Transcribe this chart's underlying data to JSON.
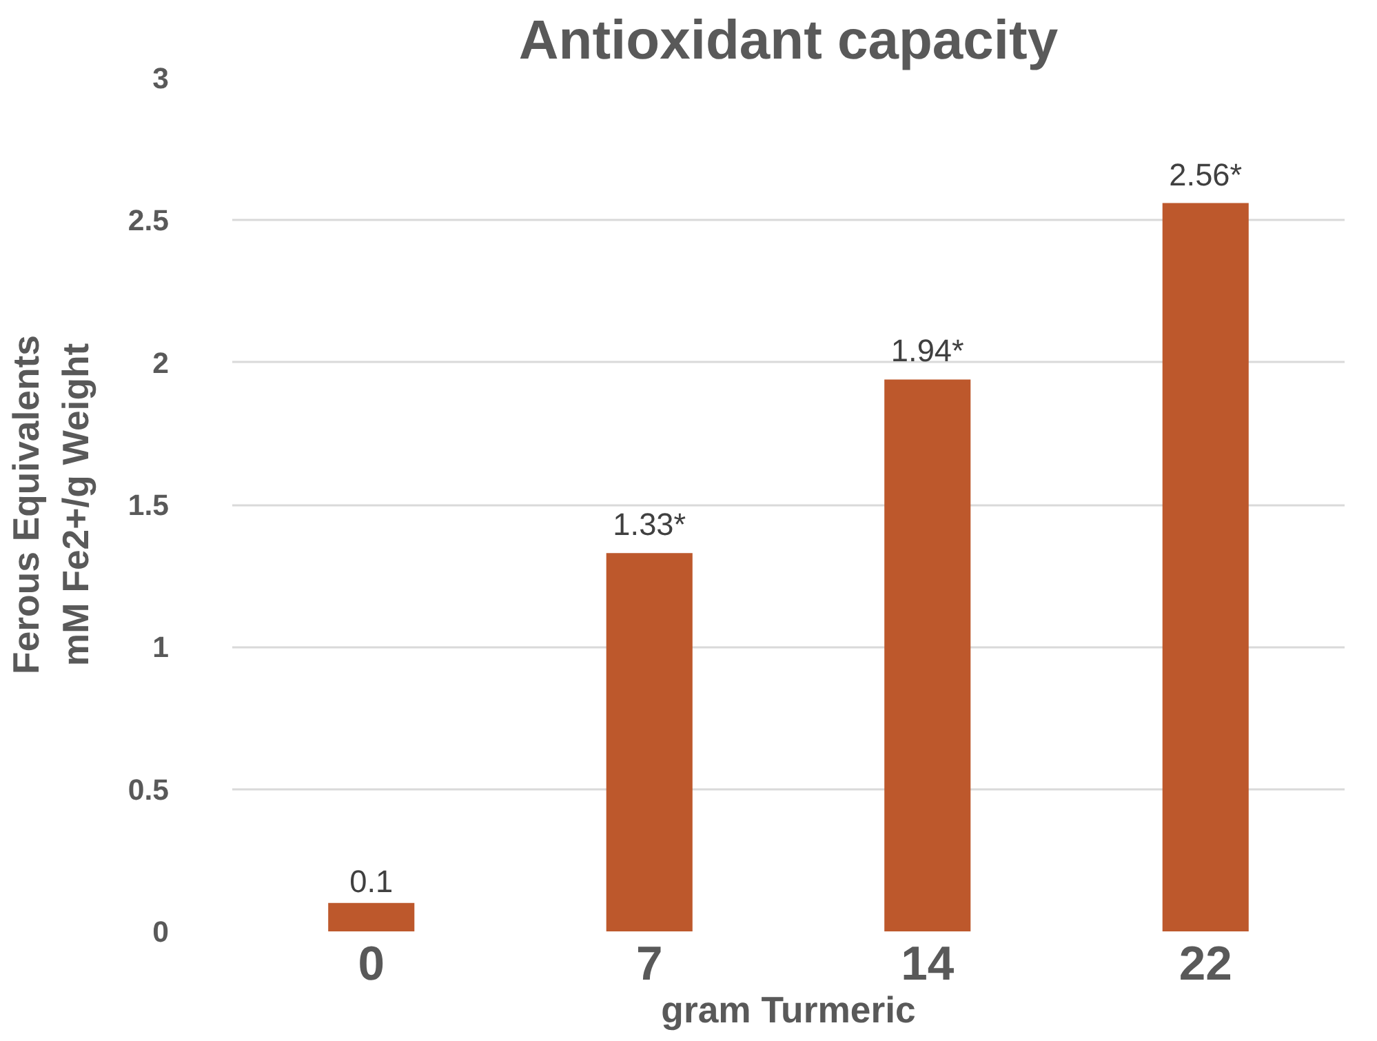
{
  "chart_data": {
    "type": "bar",
    "title": "Antioxidant capacity",
    "xlabel": "gram Turmeric",
    "ylabel": "Ferous Equivalents\nmM Fe2+/g Weight",
    "categories": [
      "0",
      "7",
      "14",
      "22"
    ],
    "values": [
      0.1,
      1.33,
      1.94,
      2.56
    ],
    "value_labels": [
      "0.1",
      "1.33*",
      "1.94*",
      "2.56*"
    ],
    "color": "#bd582c",
    "ylim": [
      0,
      3
    ],
    "yticks": [
      0,
      0.5,
      1,
      1.5,
      2,
      2.5,
      3
    ],
    "grid": "y"
  }
}
